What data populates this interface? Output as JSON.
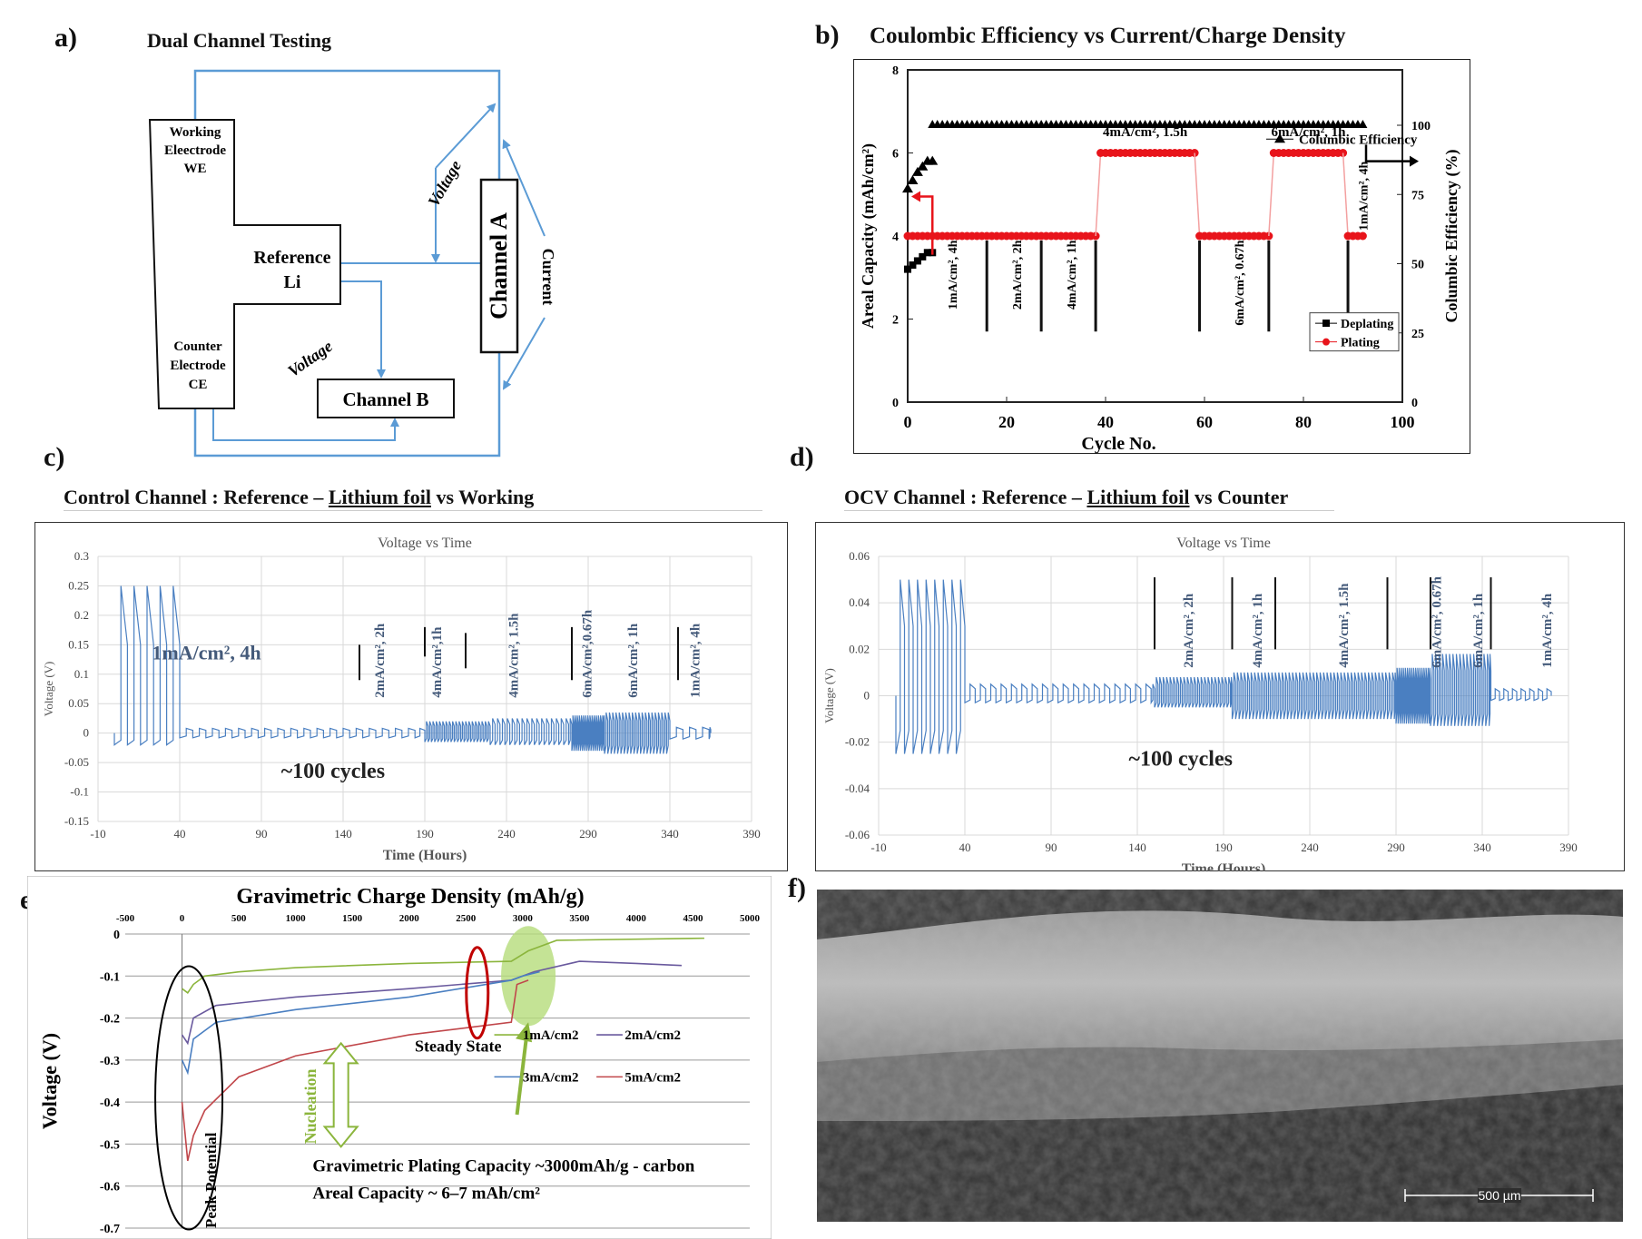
{
  "panel_labels": {
    "a": "a)",
    "b": "b)",
    "c": "c)",
    "d": "d)",
    "e": "e)",
    "f": "f)"
  },
  "panel_a": {
    "title": "Dual Channel Testing",
    "working_electrode": [
      "Working",
      "Eleectrode",
      "WE"
    ],
    "reference": [
      "Reference",
      "Li"
    ],
    "counter_electrode": [
      "Counter",
      "Electrode",
      "CE"
    ],
    "channel_a": "Channel A",
    "channel_b": "Channel B",
    "voltage_a": "Voltage",
    "voltage_b": "Voltage",
    "current": "Current"
  },
  "panel_b_title": "Coulombic Efficiency vs Current/Charge Density",
  "panel_c_title": {
    "pre": "Control Channel : Reference – ",
    "u": "Lithium foil",
    "post": " vs Working"
  },
  "panel_d_title": {
    "pre": "OCV Channel : Reference – ",
    "u": "Lithium foil",
    "post": " vs Counter"
  },
  "scale_bar": "500 µm",
  "colors": {
    "deplating": "#000000",
    "plating": "#e8141b",
    "trace": "#4a7fc1",
    "green": "#8bb53c",
    "purple": "#6a5a9e",
    "red_curve": "#c0464a",
    "grid": "#d9d9d9",
    "highlight": "#b5dc7a"
  },
  "chart_data": [
    {
      "id": "b",
      "type": "scatter",
      "xlabel": "Cycle No.",
      "ylabel": "Areal Capacity (mAh/cm²)",
      "y2label": "Columbic Efficiency (%)",
      "xlim": [
        0,
        100
      ],
      "ylim": [
        0,
        8
      ],
      "y2lim": [
        0,
        120
      ],
      "xticks": [
        0,
        20,
        40,
        60,
        80,
        100
      ],
      "yticks": [
        0,
        2,
        4,
        6,
        8
      ],
      "y2ticks": [
        0,
        25,
        50,
        75,
        100
      ],
      "legend": [
        "Deplating",
        "Plating"
      ],
      "legend2": "Columbic Efficiency",
      "series": [
        {
          "name": "Deplating",
          "x": [
            0,
            1,
            2,
            3,
            4,
            5
          ],
          "y": [
            3.2,
            3.3,
            3.4,
            3.5,
            3.6,
            3.6
          ]
        },
        {
          "name": "Plating",
          "segments": [
            {
              "x0": 0,
              "x1": 38,
              "y": 4
            },
            {
              "x0": 39,
              "x1": 58,
              "y": 6
            },
            {
              "x0": 59,
              "x1": 73,
              "y": 4
            },
            {
              "x0": 74,
              "x1": 88,
              "y": 6
            },
            {
              "x0": 89,
              "x1": 92,
              "y": 4
            }
          ]
        },
        {
          "name": "Columbic Efficiency",
          "x": [
            0,
            1,
            2,
            3,
            4,
            5
          ],
          "y": [
            77,
            80,
            83,
            85,
            87,
            87
          ],
          "plateau": {
            "x0": 5,
            "x1": 92,
            "y": 100
          }
        }
      ],
      "annotations": [
        {
          "text": "1mA/cm², 4h",
          "x": 9
        },
        {
          "text": "2mA/cm², 2h",
          "x": 22
        },
        {
          "text": "4mA/cm², 1h",
          "x": 33
        },
        {
          "text": "4mA/cm², 1.5h",
          "x": 48,
          "horizontal": true
        },
        {
          "text": "6mA/cm², 0.67h",
          "x": 67
        },
        {
          "text": "6mA/cm², 1h",
          "x": 81,
          "horizontal": true
        },
        {
          "text": "1mA/cm², 4h",
          "x": 92
        }
      ],
      "dividers": [
        16,
        27,
        38,
        59,
        73,
        89
      ]
    },
    {
      "id": "c",
      "type": "line",
      "title": "Voltage vs Time",
      "xlabel": "Time (Hours)",
      "ylabel": "Voltage (V)",
      "xlim": [
        -10,
        390
      ],
      "ylim": [
        -0.15,
        0.3
      ],
      "xticks": [
        -10,
        40,
        90,
        140,
        190,
        240,
        290,
        340,
        390
      ],
      "yticks": [
        -0.15,
        -0.1,
        -0.05,
        0,
        0.05,
        0.1,
        0.15,
        0.2,
        0.25,
        0.3
      ],
      "segments": [
        {
          "x0": 0,
          "x1": 40,
          "amp_hi": 0.25,
          "amp_lo": -0.02,
          "period": 8,
          "label": "1mA/cm², 4h"
        },
        {
          "x0": 40,
          "x1": 190,
          "amp_hi": 0.008,
          "amp_lo": -0.008,
          "period": 8
        },
        {
          "x0": 190,
          "x1": 230,
          "amp_hi": 0.02,
          "amp_lo": -0.015,
          "period": 2
        },
        {
          "x0": 230,
          "x1": 280,
          "amp_hi": 0.025,
          "amp_lo": -0.02,
          "period": 3
        },
        {
          "x0": 280,
          "x1": 300,
          "amp_hi": 0.03,
          "amp_lo": -0.03,
          "period": 1.3
        },
        {
          "x0": 300,
          "x1": 340,
          "amp_hi": 0.035,
          "amp_lo": -0.035,
          "period": 2
        },
        {
          "x0": 340,
          "x1": 365,
          "amp_hi": 0.01,
          "amp_lo": -0.01,
          "period": 8
        }
      ],
      "annotations": [
        "1mA/cm², 4h",
        "2mA/cm², 2h",
        "4mA/cm²,1h",
        "4mA/cm², 1.5h",
        "6mA/cm²,0.67h",
        "6mA/cm², 1h",
        "1mA/cm², 4h",
        "~100 cycles"
      ]
    },
    {
      "id": "d",
      "type": "line",
      "title": "Voltage vs Time",
      "xlabel": "Time (Hours)",
      "ylabel": "Voltage (V)",
      "xlim": [
        -10,
        390
      ],
      "ylim": [
        -0.06,
        0.06
      ],
      "xticks": [
        -10,
        40,
        90,
        140,
        190,
        240,
        290,
        340,
        390
      ],
      "yticks": [
        -0.06,
        -0.04,
        -0.02,
        0,
        0.02,
        0.04,
        0.06
      ],
      "segments": [
        {
          "x0": 0,
          "x1": 40,
          "amp_hi": 0.05,
          "amp_lo": -0.025,
          "period": 5
        },
        {
          "x0": 40,
          "x1": 150,
          "amp_hi": 0.005,
          "amp_lo": -0.003,
          "period": 6
        },
        {
          "x0": 150,
          "x1": 195,
          "amp_hi": 0.008,
          "amp_lo": -0.005,
          "period": 2
        },
        {
          "x0": 195,
          "x1": 290,
          "amp_hi": 0.01,
          "amp_lo": -0.01,
          "period": 2
        },
        {
          "x0": 290,
          "x1": 310,
          "amp_hi": 0.012,
          "amp_lo": -0.012,
          "period": 1.2
        },
        {
          "x0": 310,
          "x1": 345,
          "amp_hi": 0.018,
          "amp_lo": -0.013,
          "period": 2
        },
        {
          "x0": 345,
          "x1": 380,
          "amp_hi": 0.003,
          "amp_lo": -0.002,
          "period": 5
        }
      ],
      "annotations": [
        "2mA/cm², 2h",
        "4mA/cm², 1h",
        "4mA/cm², 1.5h",
        "6mA/cm², 0.67h",
        "6mA/cm², 1h",
        "1mA/cm², 4h",
        "~100 cycles"
      ]
    },
    {
      "id": "e",
      "type": "line",
      "title": "Gravimetric Charge Density (mAh/g)",
      "xlabel": "Gravimetric Charge Density (mAh/g)",
      "ylabel": "Voltage (V)",
      "xlim": [
        -500,
        5000
      ],
      "ylim": [
        -0.7,
        0
      ],
      "xticks": [
        -500,
        0,
        500,
        1000,
        1500,
        2000,
        2500,
        3000,
        3500,
        4000,
        4500,
        5000
      ],
      "yticks": [
        0,
        -0.1,
        -0.2,
        -0.3,
        -0.4,
        -0.5,
        -0.6,
        -0.7
      ],
      "series": [
        {
          "name": "1mA/cm2",
          "x": [
            0,
            50,
            100,
            200,
            500,
            1000,
            2000,
            2900,
            3050,
            3300,
            4600
          ],
          "y": [
            -0.13,
            -0.14,
            -0.12,
            -0.1,
            -0.09,
            -0.08,
            -0.07,
            -0.065,
            -0.04,
            -0.015,
            -0.01
          ]
        },
        {
          "name": "2mA/cm2",
          "x": [
            0,
            50,
            100,
            300,
            1000,
            2000,
            2900,
            3100,
            3500,
            4000,
            4400
          ],
          "y": [
            -0.24,
            -0.26,
            -0.2,
            -0.17,
            -0.15,
            -0.13,
            -0.11,
            -0.09,
            -0.065,
            -0.07,
            -0.075
          ]
        },
        {
          "name": "3mA/cm2",
          "x": [
            0,
            50,
            100,
            300,
            1000,
            2000,
            2900,
            3000,
            3150
          ],
          "y": [
            -0.3,
            -0.33,
            -0.25,
            -0.21,
            -0.18,
            -0.15,
            -0.11,
            -0.1,
            -0.09
          ]
        },
        {
          "name": "5mA/cm2",
          "x": [
            0,
            50,
            100,
            200,
            500,
            1000,
            2000,
            2900,
            2950,
            3050
          ],
          "y": [
            -0.4,
            -0.54,
            -0.48,
            -0.42,
            -0.34,
            -0.29,
            -0.24,
            -0.21,
            -0.12,
            -0.11
          ]
        }
      ],
      "annotations": [
        "Steady State",
        "Nucleation",
        "Peak Potential",
        "Gravimetric Plating Capacity ~3000mAh/g - carbon",
        "Areal Capacity ~ 6–7 mAh/cm²"
      ]
    }
  ]
}
